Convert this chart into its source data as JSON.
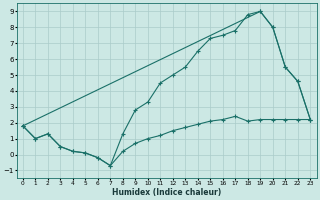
{
  "xlabel": "Humidex (Indice chaleur)",
  "bg_color": "#cce8e4",
  "grid_color": "#aaccca",
  "line_color": "#1a7068",
  "xlim": [
    -0.5,
    23.5
  ],
  "ylim": [
    -1.5,
    9.5
  ],
  "xtick_labels": [
    "0",
    "1",
    "2",
    "3",
    "4",
    "5",
    "6",
    "7",
    "8",
    "9",
    "10",
    "11",
    "12",
    "13",
    "14",
    "15",
    "16",
    "17",
    "18",
    "19",
    "20",
    "21",
    "22",
    "23"
  ],
  "xticks": [
    0,
    1,
    2,
    3,
    4,
    5,
    6,
    7,
    8,
    9,
    10,
    11,
    12,
    13,
    14,
    15,
    16,
    17,
    18,
    19,
    20,
    21,
    22,
    23
  ],
  "yticks": [
    -1,
    0,
    1,
    2,
    3,
    4,
    5,
    6,
    7,
    8,
    9
  ],
  "line_min_x": [
    0,
    1,
    2,
    3,
    4,
    5,
    6,
    7,
    8,
    9,
    10,
    11,
    12,
    13,
    14,
    15,
    16,
    17,
    18,
    19,
    20,
    21,
    22,
    23
  ],
  "line_min_y": [
    1.8,
    1.0,
    1.3,
    0.5,
    0.2,
    0.1,
    -0.2,
    -0.7,
    0.2,
    0.7,
    1.0,
    1.2,
    1.5,
    1.7,
    1.9,
    2.1,
    2.2,
    2.4,
    2.1,
    2.2,
    2.2,
    2.2,
    2.2,
    2.2
  ],
  "line_max_x": [
    0,
    1,
    2,
    3,
    4,
    5,
    6,
    7,
    8,
    9,
    10,
    11,
    12,
    13,
    14,
    15,
    16,
    17,
    18,
    19,
    20,
    21,
    22,
    23
  ],
  "line_max_y": [
    1.8,
    1.0,
    1.3,
    0.5,
    0.2,
    0.1,
    -0.2,
    -0.7,
    1.3,
    2.8,
    3.3,
    4.5,
    5.0,
    5.5,
    6.5,
    7.3,
    7.5,
    7.8,
    8.8,
    9.0,
    8.0,
    5.5,
    4.6,
    2.2
  ],
  "line_diag_x": [
    0,
    19,
    20,
    21,
    22,
    23
  ],
  "line_diag_y": [
    1.8,
    9.0,
    8.0,
    5.5,
    4.6,
    2.2
  ]
}
